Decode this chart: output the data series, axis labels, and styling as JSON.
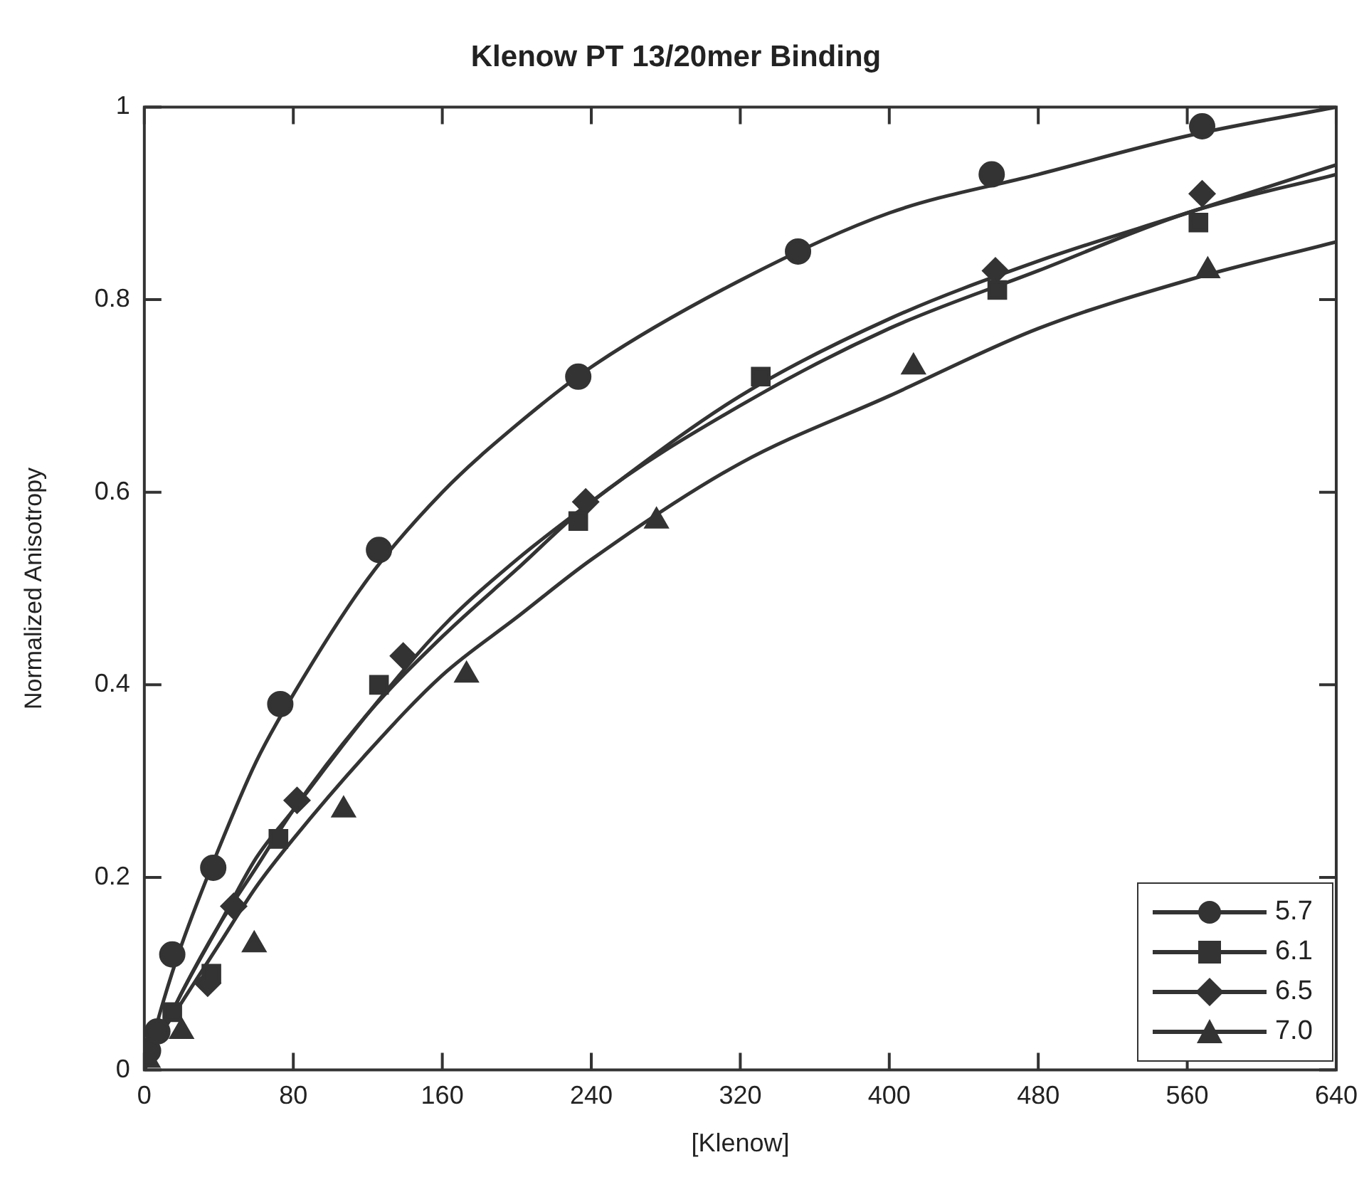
{
  "chart_data": {
    "type": "scatter",
    "title": "Klenow PT 13/20mer Binding",
    "xlabel": "[Klenow]",
    "ylabel": "Normalized Anisotropy",
    "xlim": [
      0,
      640
    ],
    "xticks": [
      0,
      80,
      160,
      240,
      320,
      400,
      480,
      560,
      640
    ],
    "ylim": [
      0,
      1
    ],
    "yticks": [
      0,
      0.2,
      0.4,
      0.6,
      0.8,
      1
    ],
    "grid": false,
    "legend": "bottom right",
    "series": [
      {
        "name": "5.7",
        "type": "scatter",
        "marker": "circle",
        "color": "#333333",
        "x": [
          2,
          7,
          15,
          37,
          73,
          126,
          233,
          351,
          455,
          568
        ],
        "values": [
          0.02,
          0.04,
          0.12,
          0.21,
          0.38,
          0.54,
          0.72,
          0.85,
          0.93,
          0.98
        ]
      },
      {
        "name": "6.1",
        "type": "scatter",
        "marker": "square",
        "color": "#333333",
        "x": [
          15,
          36,
          72,
          126,
          233,
          331,
          458,
          566
        ],
        "values": [
          0.06,
          0.1,
          0.24,
          0.4,
          0.57,
          0.72,
          0.81,
          0.88
        ]
      },
      {
        "name": "6.5",
        "type": "scatter",
        "marker": "diamond",
        "color": "#333333",
        "x": [
          34,
          48,
          82,
          139,
          237,
          457,
          568
        ],
        "values": [
          0.09,
          0.17,
          0.28,
          0.43,
          0.59,
          0.83,
          0.91
        ]
      },
      {
        "name": "7.0",
        "type": "scatter",
        "marker": "triangle",
        "color": "#333333",
        "x": [
          2,
          20,
          59,
          107,
          173,
          275,
          413,
          571
        ],
        "values": [
          0.01,
          0.04,
          0.13,
          0.27,
          0.41,
          0.57,
          0.73,
          0.83
        ]
      },
      {
        "type": "line",
        "marker": "none",
        "color": "#333333",
        "x": [
          0,
          10,
          20,
          40,
          60,
          80,
          120,
          160,
          200,
          240,
          320,
          400,
          480,
          560,
          640
        ],
        "values": [
          0,
          0.07,
          0.13,
          0.23,
          0.32,
          0.39,
          0.51,
          0.6,
          0.67,
          0.73,
          0.82,
          0.89,
          0.93,
          0.97,
          1
        ]
      },
      {
        "type": "line",
        "marker": "none",
        "color": "#333333",
        "x": [
          0,
          10,
          20,
          40,
          60,
          80,
          120,
          160,
          200,
          240,
          320,
          400,
          480,
          560,
          640
        ],
        "values": [
          0,
          0.04,
          0.08,
          0.15,
          0.21,
          0.27,
          0.37,
          0.45,
          0.52,
          0.59,
          0.69,
          0.77,
          0.83,
          0.89,
          0.93
        ]
      },
      {
        "type": "line",
        "marker": "none",
        "color": "#333333",
        "x": [
          0,
          10,
          20,
          40,
          60,
          80,
          120,
          160,
          200,
          240,
          320,
          400,
          480,
          560,
          640
        ],
        "values": [
          0,
          0.04,
          0.08,
          0.15,
          0.22,
          0.27,
          0.37,
          0.46,
          0.53,
          0.59,
          0.7,
          0.78,
          0.84,
          0.89,
          0.94
        ]
      },
      {
        "type": "line",
        "marker": "none",
        "color": "#333333",
        "x": [
          0,
          10,
          20,
          40,
          60,
          80,
          120,
          160,
          200,
          240,
          320,
          400,
          480,
          560,
          640
        ],
        "values": [
          0,
          0.04,
          0.07,
          0.13,
          0.19,
          0.24,
          0.33,
          0.41,
          0.47,
          0.53,
          0.63,
          0.7,
          0.77,
          0.82,
          0.86
        ]
      }
    ]
  }
}
